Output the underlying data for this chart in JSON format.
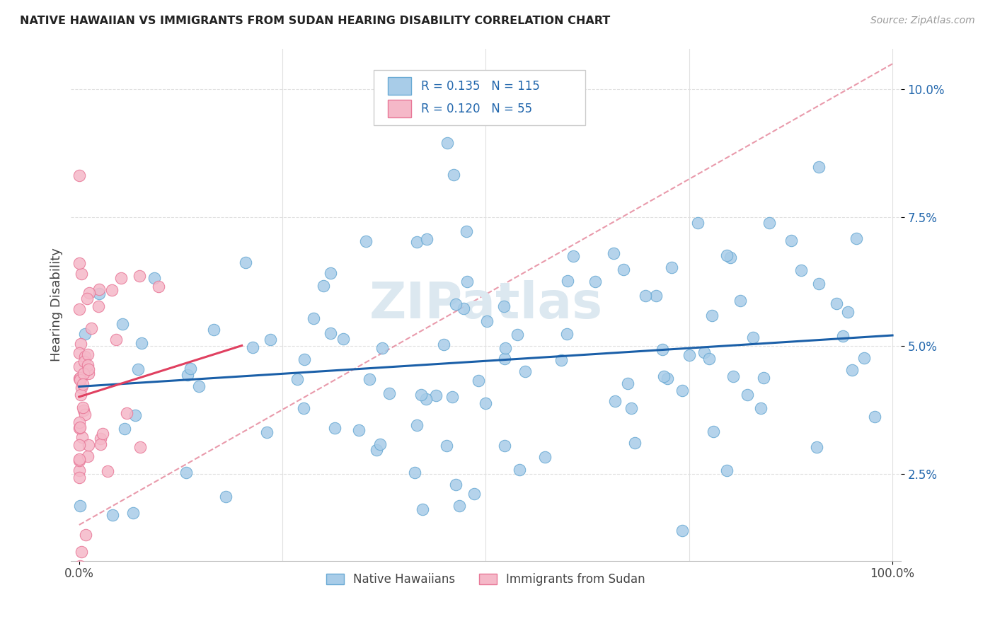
{
  "title": "NATIVE HAWAIIAN VS IMMIGRANTS FROM SUDAN HEARING DISABILITY CORRELATION CHART",
  "source": "Source: ZipAtlas.com",
  "ylabel": "Hearing Disability",
  "R_blue": 0.135,
  "N_blue": 115,
  "R_pink": 0.12,
  "N_pink": 55,
  "blue_color": "#a8cce8",
  "pink_color": "#f5b8c8",
  "blue_edge_color": "#6aaad4",
  "pink_edge_color": "#e87898",
  "blue_line_color": "#1a5fa8",
  "pink_line_color": "#e04060",
  "ref_line_color": "#e07088",
  "legend_label_blue": "Native Hawaiians",
  "legend_label_pink": "Immigrants from Sudan",
  "xlim": [
    -0.01,
    1.01
  ],
  "ylim": [
    0.008,
    0.108
  ],
  "yticks": [
    0.025,
    0.05,
    0.075,
    0.1
  ],
  "ytick_labels": [
    "2.5%",
    "5.0%",
    "7.5%",
    "10.0%"
  ],
  "background_color": "#ffffff",
  "grid_color": "#e0e0e0",
  "watermark": "ZIPatlas",
  "watermark_color": "#dce8f0"
}
